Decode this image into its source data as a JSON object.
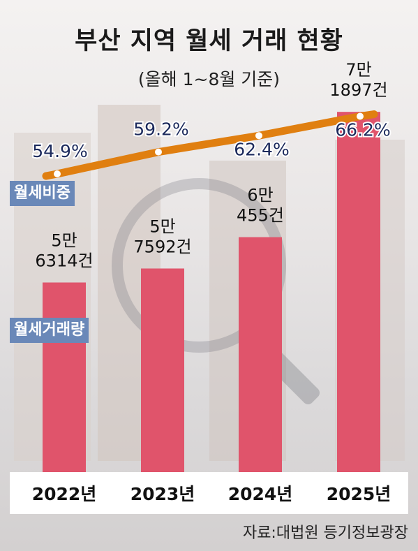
{
  "title": "부산 지역 월세 거래 현황",
  "subtitle": "(올해 1~8월 기준)",
  "source": "자료:대법원 등기정보광장",
  "colors": {
    "bar": "#e0546b",
    "line": "#e07f10",
    "legend": "#6a88b8"
  },
  "chart_data": {
    "type": "bar",
    "title": "부산 지역 월세 거래 현황",
    "subtitle": "(올해 1~8월 기준)",
    "categories": [
      "2022년",
      "2023년",
      "2024년",
      "2025년"
    ],
    "series": [
      {
        "name": "월세거래량",
        "type": "bar",
        "values": [
          56314,
          57592,
          60455,
          71897
        ],
        "labels": [
          [
            "5만",
            "6314건"
          ],
          [
            "5만",
            "7592건"
          ],
          [
            "6만",
            "455건"
          ],
          [
            "7만",
            "1897건"
          ]
        ]
      },
      {
        "name": "월세비중",
        "type": "line",
        "values": [
          54.9,
          59.2,
          62.4,
          66.2
        ],
        "labels": [
          "54.9%",
          "59.2%",
          "62.4%",
          "66.2%"
        ]
      }
    ],
    "legend": [
      "월세비중",
      "월세거래량"
    ],
    "grid": false
  }
}
